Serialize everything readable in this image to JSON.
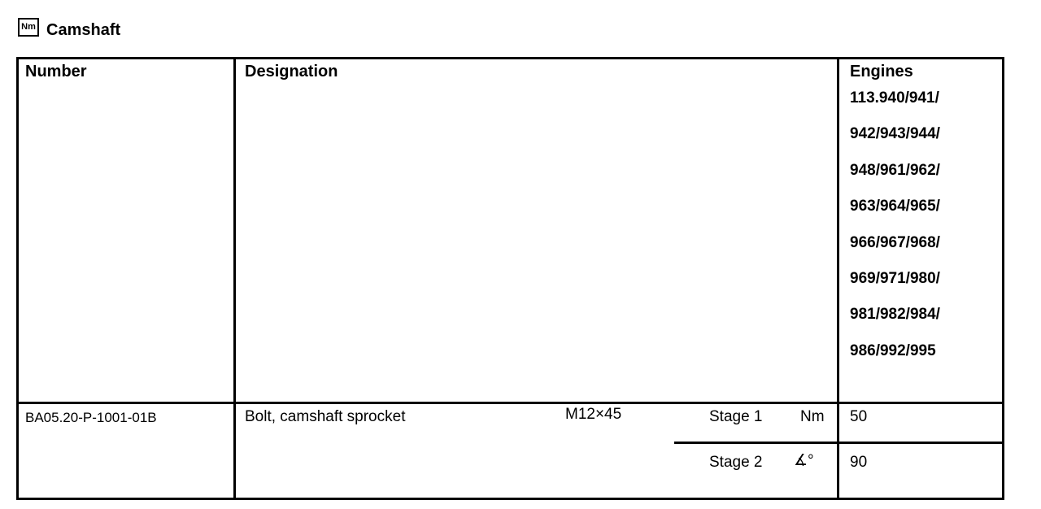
{
  "header": {
    "icon": "Nm",
    "title": "Camshaft"
  },
  "table": {
    "columns": [
      "Number",
      "Designation",
      "Engines"
    ],
    "engines": [
      "113.940/941/",
      "942/943/944/",
      "948/961/962/",
      "963/964/965/",
      "966/967/968/",
      "969/971/980/",
      "981/982/984/",
      "986/992/995"
    ],
    "rows": [
      {
        "number": "BA05.20-P-1001-01B",
        "designation": "Bolt, camshaft sprocket",
        "size": "M12×45",
        "stages": [
          {
            "stage": "Stage 1",
            "unit": "Nm",
            "value": 50
          },
          {
            "stage": "Stage 2",
            "unit": "∡°",
            "value": 90
          }
        ]
      }
    ]
  }
}
